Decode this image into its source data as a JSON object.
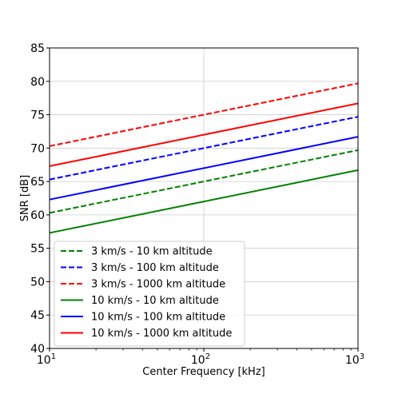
{
  "chart_data": {
    "type": "line",
    "xscale": "log",
    "xlabel": "Center Frequency [kHz]",
    "ylabel": "SNR [dB]",
    "xlim": [
      10,
      1000
    ],
    "ylim": [
      40,
      85
    ],
    "yticks": [
      40,
      45,
      50,
      55,
      60,
      65,
      70,
      75,
      80,
      85
    ],
    "xticks": [
      {
        "value": 10,
        "base": "10",
        "exp": "1"
      },
      {
        "value": 100,
        "base": "10",
        "exp": "2"
      },
      {
        "value": 1000,
        "base": "10",
        "exp": "3"
      }
    ],
    "grid": true,
    "legend_position": "lower-left",
    "series": [
      {
        "name": "3 km/s - 10 km altitude",
        "color": "#008000",
        "style": "dashed",
        "x": [
          10,
          1000
        ],
        "y": [
          60.3,
          69.7
        ]
      },
      {
        "name": "3 km/s - 100 km altitude",
        "color": "#0000ff",
        "style": "dashed",
        "x": [
          10,
          1000
        ],
        "y": [
          65.3,
          74.7
        ]
      },
      {
        "name": "3 km/s - 1000 km altitude",
        "color": "#ff0000",
        "style": "dashed",
        "x": [
          10,
          1000
        ],
        "y": [
          70.3,
          79.7
        ]
      },
      {
        "name": "10 km/s - 10 km altitude",
        "color": "#008000",
        "style": "solid",
        "x": [
          10,
          1000
        ],
        "y": [
          57.3,
          66.7
        ]
      },
      {
        "name": "10 km/s - 100 km altitude",
        "color": "#0000ff",
        "style": "solid",
        "x": [
          10,
          1000
        ],
        "y": [
          62.3,
          71.7
        ]
      },
      {
        "name": "10 km/s - 1000 km altitude",
        "color": "#ff0000",
        "style": "solid",
        "x": [
          10,
          1000
        ],
        "y": [
          67.3,
          76.7
        ]
      }
    ]
  }
}
